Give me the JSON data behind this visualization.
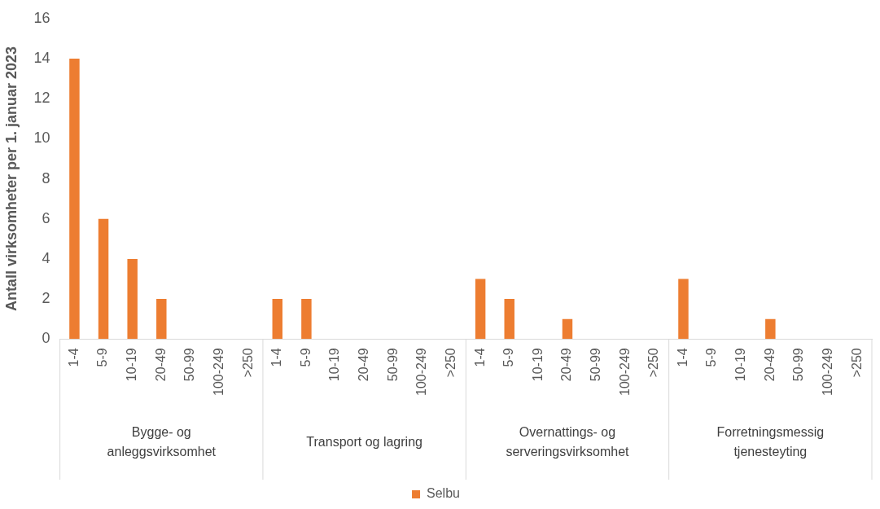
{
  "chart_data": {
    "type": "bar",
    "ylabel": "Antall virksomheter per 1. januar 2023",
    "categories": [
      "1-4",
      "5-9",
      "10-19",
      "20-49",
      "50-99",
      "100-249",
      ">250",
      "1-4",
      "5-9",
      "10-19",
      "20-49",
      "50-99",
      "100-249",
      ">250",
      "1-4",
      "5-9",
      "10-19",
      "20-49",
      "50-99",
      "100-249",
      ">250",
      "1-4",
      "5-9",
      "10-19",
      "20-49",
      "50-99",
      "100-249",
      ">250"
    ],
    "series": [
      {
        "name": "Selbu",
        "color": "#ed7d31",
        "values": [
          14,
          6,
          4,
          2,
          0,
          0,
          0,
          2,
          2,
          0,
          0,
          0,
          0,
          0,
          3,
          2,
          0,
          1,
          0,
          0,
          0,
          3,
          0,
          0,
          1,
          0,
          0,
          0
        ]
      }
    ],
    "annotations": [
      "Bygge- og anleggsvirksomhet",
      "Transport og lagring",
      "Overnattings- og serveringsvirksomhet",
      "Forretningsmessig tjenesteyting"
    ],
    "ylim": [
      0,
      16
    ],
    "yticks": [
      0,
      2,
      4,
      6,
      8,
      10,
      12,
      14,
      16
    ],
    "grid": false,
    "legend": "bottom"
  }
}
